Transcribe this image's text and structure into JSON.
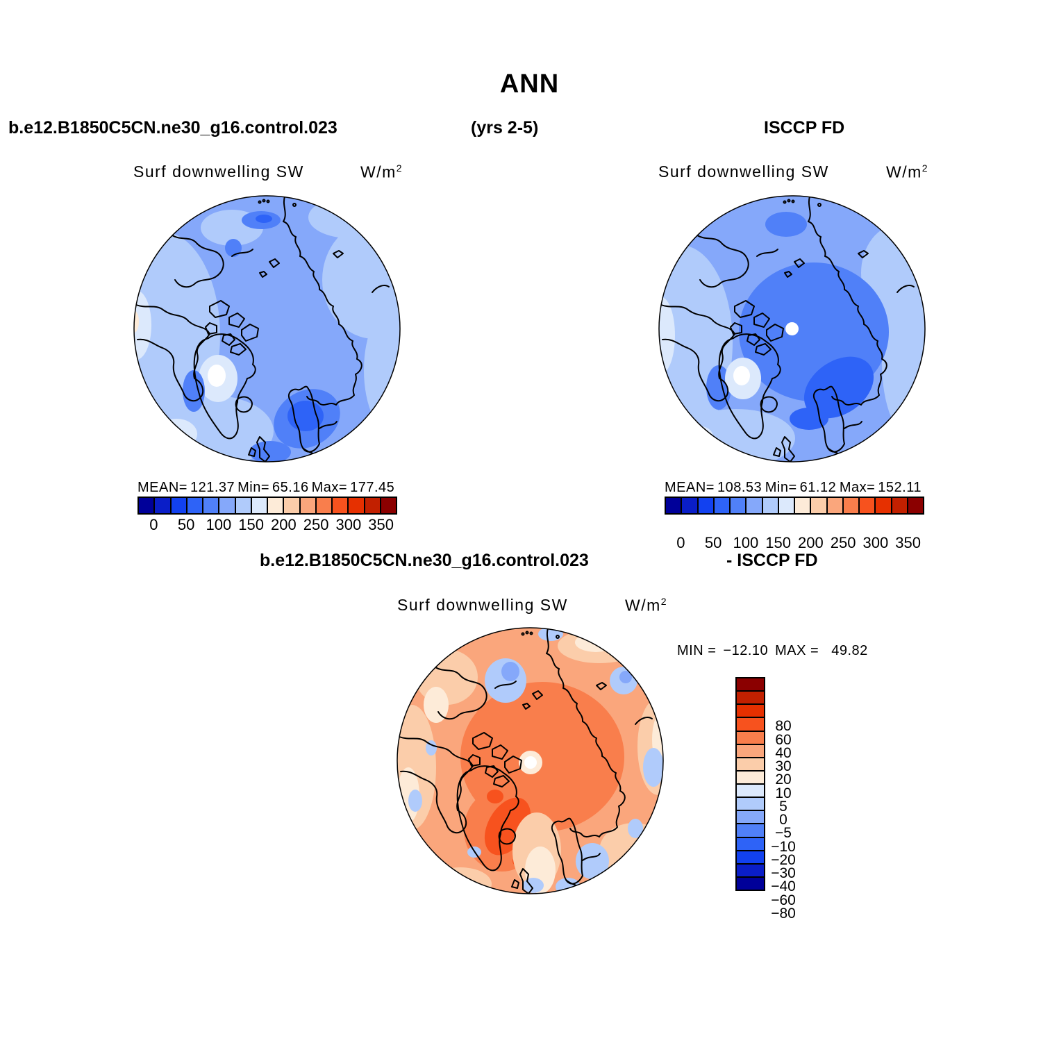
{
  "title": "ANN",
  "header": {
    "left": "b.e12.B1850C5CN.ne30_g16.control.023",
    "center": "(yrs 2-5)",
    "right": "ISCCP FD"
  },
  "panels": {
    "model": {
      "field": "Surf downwelling SW",
      "units_base": "W/m",
      "units_exp": "2",
      "stats": {
        "mean_label": "MEAN=",
        "mean": "121.37",
        "min_label": "Min=",
        "min": "65.16",
        "max_label": "Max=",
        "max": "177.45"
      }
    },
    "obs": {
      "field": "Surf downwelling SW",
      "units_base": "W/m",
      "units_exp": "2",
      "stats": {
        "mean_label": "MEAN=",
        "mean": "108.53",
        "min_label": "Min=",
        "min": "61.12",
        "max_label": "Max=",
        "max": "152.11"
      }
    }
  },
  "diff": {
    "header_left": "b.e12.B1850C5CN.ne30_g16.control.023",
    "header_right": "- ISCCP FD",
    "field": "Surf downwelling SW",
    "units_base": "W/m",
    "units_exp": "2",
    "min_label": "MIN =",
    "min_value": "−12.10",
    "max_label": "MAX =",
    "max_value": "49.82"
  },
  "abs_colorbar": {
    "tick_labels": [
      "0",
      "50",
      "100",
      "150",
      "200",
      "250",
      "300",
      "350"
    ]
  },
  "diff_colorbar": {
    "tick_labels_top_to_bottom": [
      "80",
      "60",
      "40",
      "30",
      "20",
      "10",
      "5",
      "0",
      "−5",
      "−10",
      "−20",
      "−30",
      "−40",
      "−60",
      "−80"
    ]
  },
  "colors": {
    "palette_low_to_high": [
      "#000099",
      "#0A1EC8",
      "#1241F0",
      "#2E63F7",
      "#5080F8",
      "#85A8FA",
      "#B0CBFB",
      "#DCE9FC",
      "#FDEBD8",
      "#FBCDAA",
      "#FAA67C",
      "#F97E4C",
      "#F7521E",
      "#E63000",
      "#C22000",
      "#8B0000"
    ],
    "coastline": "#000000",
    "pole_hole": "#ffffff"
  },
  "chart_data": [
    {
      "type": "heatmap",
      "subtype": "north-polar-stereographic filled contour map",
      "panel": "top-left",
      "title": "Surf downwelling SW",
      "dataset": "b.e12.B1850C5CN.ne30_g16.control.023",
      "period": "(yrs 2-5)",
      "season": "ANN",
      "units": "W/m2",
      "stats": {
        "mean": 121.37,
        "min": 65.16,
        "max": 177.45
      },
      "contour_levels": [
        0,
        25,
        50,
        75,
        100,
        125,
        150,
        175,
        200,
        225,
        250,
        275,
        300,
        325,
        350
      ],
      "legend_tick_labels": [
        0,
        50,
        100,
        150,
        200,
        250,
        300,
        350
      ],
      "legend_orientation": "horizontal",
      "palette_low_to_high": [
        "#000099",
        "#0A1EC8",
        "#1241F0",
        "#2E63F7",
        "#5080F8",
        "#85A8FA",
        "#B0CBFB",
        "#DCE9FC",
        "#FDEBD8",
        "#FBCDAA",
        "#FAA67C",
        "#F97E4C",
        "#F7521E",
        "#E63000",
        "#C22000",
        "#8B0000"
      ]
    },
    {
      "type": "heatmap",
      "subtype": "north-polar-stereographic filled contour map",
      "panel": "top-right",
      "title": "Surf downwelling SW",
      "dataset": "ISCCP FD",
      "season": "ANN",
      "units": "W/m2",
      "stats": {
        "mean": 108.53,
        "min": 61.12,
        "max": 152.11
      },
      "contour_levels": [
        0,
        25,
        50,
        75,
        100,
        125,
        150,
        175,
        200,
        225,
        250,
        275,
        300,
        325,
        350
      ],
      "legend_tick_labels": [
        0,
        50,
        100,
        150,
        200,
        250,
        300,
        350
      ],
      "legend_orientation": "horizontal",
      "palette_low_to_high": [
        "#000099",
        "#0A1EC8",
        "#1241F0",
        "#2E63F7",
        "#5080F8",
        "#85A8FA",
        "#B0CBFB",
        "#DCE9FC",
        "#FDEBD8",
        "#FBCDAA",
        "#FAA67C",
        "#F97E4C",
        "#F7521E",
        "#E63000",
        "#C22000",
        "#8B0000"
      ]
    },
    {
      "type": "heatmap",
      "subtype": "north-polar-stereographic filled contour difference map",
      "panel": "bottom-center",
      "title": "Surf downwelling SW",
      "dataset": "b.e12.B1850C5CN.ne30_g16.control.023 - ISCCP FD",
      "season": "ANN",
      "units": "W/m2",
      "stats": {
        "min": -12.1,
        "max": 49.82
      },
      "contour_levels": [
        -80,
        -60,
        -40,
        -30,
        -20,
        -10,
        -5,
        0,
        5,
        10,
        20,
        30,
        40,
        60,
        80
      ],
      "legend_tick_labels": [
        80,
        60,
        40,
        30,
        20,
        10,
        5,
        0,
        -5,
        -10,
        -20,
        -30,
        -40,
        -60,
        -80
      ],
      "legend_orientation": "vertical",
      "palette_low_to_high": [
        "#000099",
        "#0A1EC8",
        "#1241F0",
        "#2E63F7",
        "#5080F8",
        "#85A8FA",
        "#B0CBFB",
        "#DCE9FC",
        "#FDEBD8",
        "#FBCDAA",
        "#FAA67C",
        "#F97E4C",
        "#F7521E",
        "#E63000",
        "#C22000",
        "#8B0000"
      ]
    }
  ]
}
